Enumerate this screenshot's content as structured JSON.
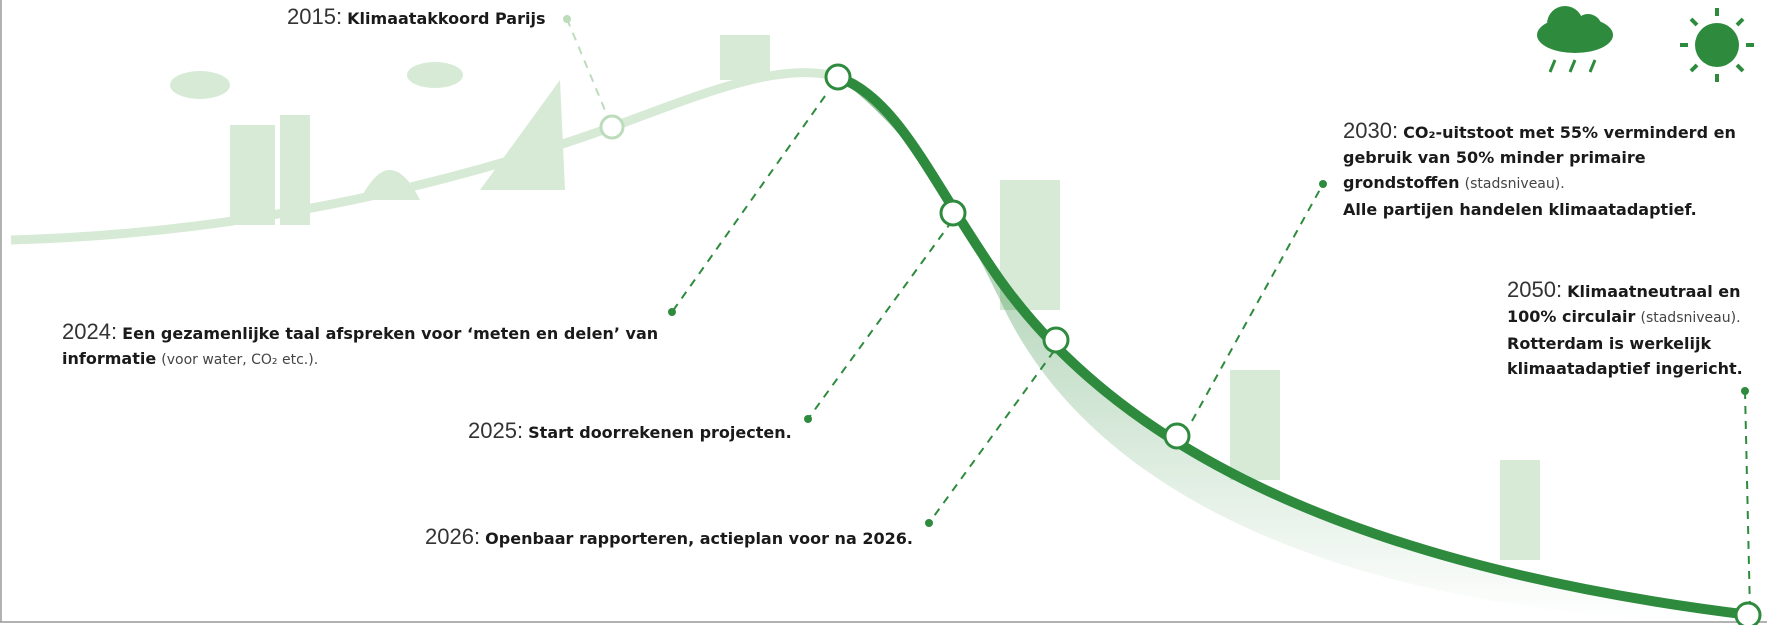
{
  "milestones": [
    {
      "year": "2015:",
      "bold": "Klimaatakkoord Parijs"
    },
    {
      "year": "2024:",
      "bold": "Een gezamenlijke taal afspreken voor ‘meten en delen’ van informatie",
      "normal": "(voor water, CO₂ etc.)."
    },
    {
      "year": "2025:",
      "bold": "Start doorrekenen projecten."
    },
    {
      "year": "2026:",
      "bold": "Openbaar rapporteren, actieplan voor na 2026."
    },
    {
      "year": "2030:",
      "bold": "CO₂-uitstoot met 55% verminderd en gebruik van 50% minder primaire grondstoffen",
      "normal": "(stadsniveau).",
      "bold2": "Alle partijen handelen klimaatadaptief."
    },
    {
      "year": "2050:",
      "bold": "Klimaatneutraal en 100% circulair",
      "normal": "(stadsniveau).",
      "bold2": "Rotterdam is werkelijk klimaatadaptief ingericht."
    }
  ]
}
